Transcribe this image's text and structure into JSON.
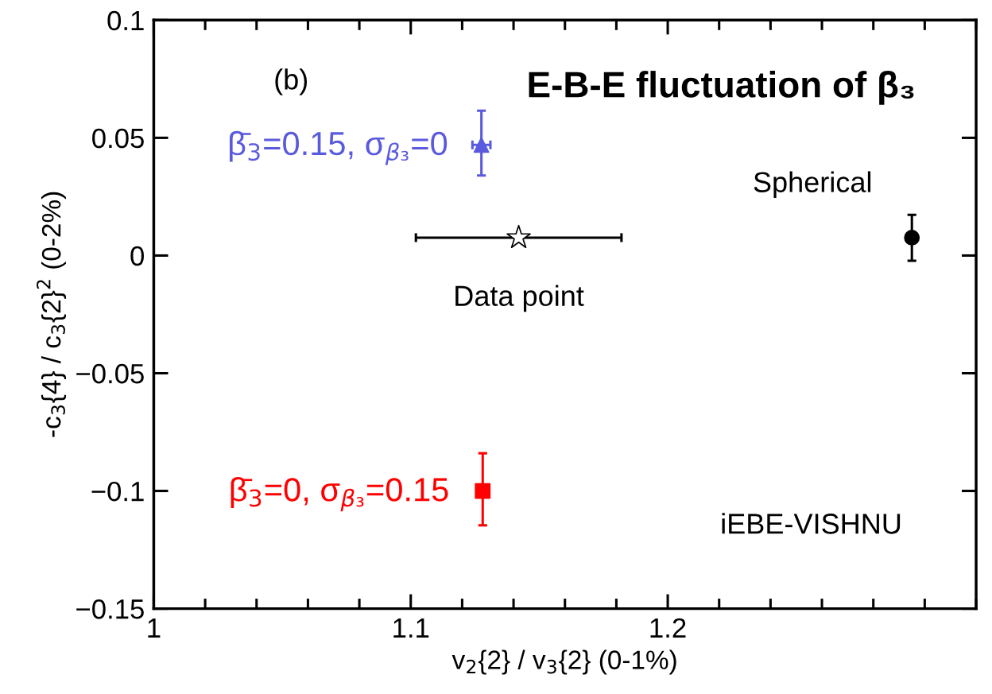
{
  "chart_data": {
    "type": "scatter",
    "title": "E-B-E fluctuation of β₃",
    "xlabel": "v$_{2}${2} / v$_{3}${2} (0-1%)",
    "ylabel": "-c$_{3}${4} / c$_{3}${2}$^{2}$ (0-2%)",
    "xlim": [
      1,
      1.32
    ],
    "xticks": [
      1,
      1.1,
      1.2
    ],
    "ylim": [
      -0.15,
      0.1
    ],
    "yticks": [
      {
        "value": -0.15,
        "label": "−0.15"
      },
      {
        "value": -0.1,
        "label": "−0.1"
      },
      {
        "value": -0.05,
        "label": "−0.05"
      },
      0,
      0.05,
      0.1
    ],
    "grid": false,
    "series": [
      {
        "color": "#5a5adf",
        "marker": "triangle",
        "x": [
          1.1275
        ],
        "values": [
          0.047
        ],
        "errors": [
          [
            0.034,
            0.0615
          ]
        ],
        "xerrors": [
          [
            1.124,
            1.131
          ]
        ]
      },
      {
        "color": "#ff0000",
        "marker": "square",
        "x": [
          1.128
        ],
        "values": [
          -0.1
        ],
        "errors": [
          [
            -0.1146,
            -0.084
          ]
        ]
      },
      {
        "color": "#000000",
        "marker": "star",
        "x": [
          1.142
        ],
        "values": [
          0.0076
        ],
        "xerrors": [
          [
            1.102,
            1.182
          ]
        ]
      },
      {
        "color": "#000000",
        "marker": "circle",
        "x": [
          1.295
        ],
        "values": [
          0.0076
        ],
        "errors": [
          [
            -0.0022,
            0.0173
          ]
        ]
      }
    ],
    "annotations": [
      "(b)",
      {
        "text": "β̄$_{3}$=0.15, σ$_{β₃}$=0",
        "x": 1.1275,
        "y": 0.047
      },
      {
        "text": "β̄$_{3}$=0, σ$_{β₃}$=0.15",
        "x": 1.128,
        "y": -0.1
      },
      {
        "text": "Data point",
        "x": 1.142,
        "y": 0.0076
      },
      {
        "text": "Spherical",
        "x": 1.295,
        "y": 0.0076
      },
      "iEBE-VISHNU"
    ]
  }
}
